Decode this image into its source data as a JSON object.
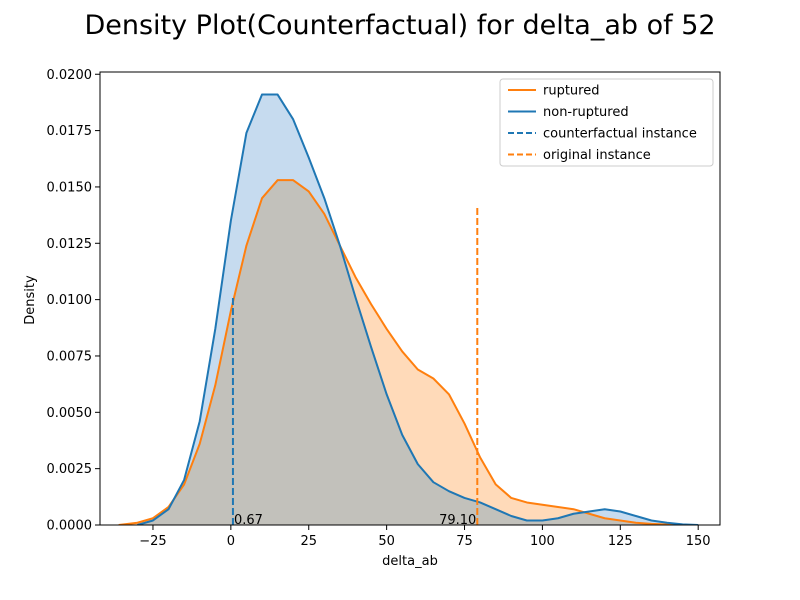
{
  "chart_data": {
    "type": "area",
    "title": "Density Plot(Counterfactual) for delta_ab of 52",
    "xlabel": "delta_ab",
    "ylabel": "Density",
    "xlim": [
      -42,
      157
    ],
    "ylim": [
      0,
      0.0201
    ],
    "x_ticks": [
      {
        "value": -25,
        "label": "−25"
      },
      {
        "value": 0,
        "label": "0"
      },
      {
        "value": 25,
        "label": "25"
      },
      {
        "value": 50,
        "label": "50"
      },
      {
        "value": 75,
        "label": "75"
      },
      {
        "value": 100,
        "label": "100"
      },
      {
        "value": 125,
        "label": "125"
      },
      {
        "value": 150,
        "label": "150"
      }
    ],
    "y_ticks": [
      {
        "value": 0,
        "label": "0.0000"
      },
      {
        "value": 0.0025,
        "label": "0.0025"
      },
      {
        "value": 0.005,
        "label": "0.0050"
      },
      {
        "value": 0.0075,
        "label": "0.0075"
      },
      {
        "value": 0.01,
        "label": "0.0100"
      },
      {
        "value": 0.0125,
        "label": "0.0125"
      },
      {
        "value": 0.015,
        "label": "0.0150"
      },
      {
        "value": 0.0175,
        "label": "0.0175"
      },
      {
        "value": 0.02,
        "label": "0.0200"
      }
    ],
    "grid": false,
    "legend_position": "top-right",
    "series": [
      {
        "name": "ruptured",
        "color": "#ff7f0e",
        "fill": "#ffdab9",
        "x": [
          -36,
          -30,
          -25,
          -20,
          -15,
          -10,
          -5,
          0,
          5,
          10,
          15,
          20,
          25,
          30,
          35,
          40,
          45,
          50,
          55,
          60,
          65,
          70,
          75,
          80,
          85,
          90,
          95,
          100,
          105,
          110,
          115,
          120,
          125,
          130,
          135,
          140,
          145
        ],
        "y": [
          0.0,
          0.0001,
          0.0003,
          0.0008,
          0.0018,
          0.0036,
          0.0062,
          0.0095,
          0.0124,
          0.0145,
          0.0153,
          0.0153,
          0.0148,
          0.0138,
          0.0124,
          0.011,
          0.0098,
          0.0087,
          0.0077,
          0.0069,
          0.0065,
          0.0058,
          0.0045,
          0.003,
          0.0018,
          0.0012,
          0.001,
          0.0009,
          0.0008,
          0.0007,
          0.0005,
          0.0003,
          0.0002,
          0.0001,
          5e-05,
          2e-05,
          0.0
        ]
      },
      {
        "name": "non-ruptured",
        "color": "#1f77b4",
        "fill": "#c6dbef",
        "x": [
          -30,
          -25,
          -20,
          -15,
          -10,
          -5,
          0,
          5,
          10,
          15,
          20,
          25,
          30,
          35,
          40,
          45,
          50,
          55,
          60,
          65,
          70,
          75,
          80,
          85,
          90,
          95,
          100,
          105,
          110,
          115,
          120,
          125,
          130,
          135,
          140,
          145,
          150
        ],
        "y": [
          0.0,
          0.0002,
          0.0007,
          0.002,
          0.0046,
          0.0087,
          0.0135,
          0.0174,
          0.0191,
          0.0191,
          0.018,
          0.0163,
          0.0145,
          0.0124,
          0.0101,
          0.0079,
          0.0058,
          0.004,
          0.0027,
          0.0019,
          0.0015,
          0.0012,
          0.001,
          0.0007,
          0.0004,
          0.0002,
          0.0002,
          0.0003,
          0.0005,
          0.0006,
          0.0007,
          0.0006,
          0.0004,
          0.0002,
          0.0001,
          3e-05,
          0.0
        ]
      }
    ],
    "instances": [
      {
        "name": "counterfactual instance",
        "x": 0.67,
        "label": "0.67",
        "color": "#1f77b4",
        "y_top": 0.0101
      },
      {
        "name": "original instance",
        "x": 79.1,
        "label": "79.10",
        "color": "#ff7f0e",
        "y_top": 0.0141
      }
    ],
    "overlap_fill": "#c2c1bb"
  }
}
